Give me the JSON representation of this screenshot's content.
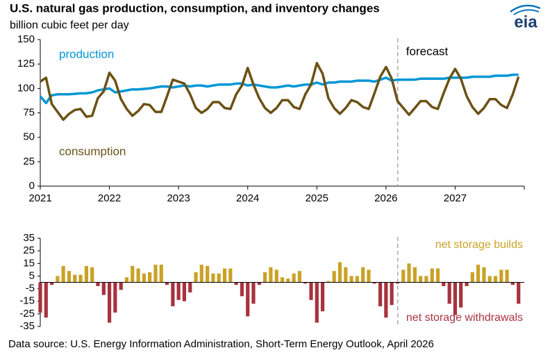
{
  "title": "U.S. natural gas production, consumption, and inventory changes",
  "subtitle": "billion cubic feet per day",
  "logo": "eia",
  "source": "Data source: U.S. Energy Information Administration, Short-Term Energy Outlook, April 2026",
  "chart_data": [
    {
      "type": "line",
      "x": [
        2021,
        2021.083,
        2021.167,
        2021.25,
        2021.333,
        2021.417,
        2021.5,
        2021.583,
        2021.667,
        2021.75,
        2021.833,
        2021.917,
        2022,
        2022.083,
        2022.167,
        2022.25,
        2022.333,
        2022.417,
        2022.5,
        2022.583,
        2022.667,
        2022.75,
        2022.833,
        2022.917,
        2023,
        2023.083,
        2023.167,
        2023.25,
        2023.333,
        2023.417,
        2023.5,
        2023.583,
        2023.667,
        2023.75,
        2023.833,
        2023.917,
        2024,
        2024.083,
        2024.167,
        2024.25,
        2024.333,
        2024.417,
        2024.5,
        2024.583,
        2024.667,
        2024.75,
        2024.833,
        2024.917,
        2025,
        2025.083,
        2025.167,
        2025.25,
        2025.333,
        2025.417,
        2025.5,
        2025.583,
        2025.667,
        2025.75,
        2025.833,
        2025.917,
        2026,
        2026.083,
        2026.167,
        2026.25,
        2026.333,
        2026.417,
        2026.5,
        2026.583,
        2026.667,
        2026.75,
        2026.833,
        2026.917,
        2027,
        2027.083,
        2027.167,
        2027.25,
        2027.333,
        2027.417,
        2027.5,
        2027.583,
        2027.667,
        2027.75,
        2027.833,
        2027.917
      ],
      "series": [
        {
          "name": "production",
          "color": "#0096d6",
          "values": [
            92,
            85,
            93,
            94,
            94,
            94,
            94.5,
            95,
            95,
            96,
            98,
            99,
            100,
            96,
            97,
            98,
            99,
            99,
            99.5,
            100,
            101,
            102,
            102,
            101,
            102,
            103,
            102,
            103,
            103,
            102,
            103,
            104,
            104,
            104,
            105,
            105,
            103,
            104,
            103,
            102,
            101,
            101,
            102,
            103,
            102,
            103,
            104,
            104,
            106,
            104,
            106,
            106,
            107,
            107,
            107,
            108,
            108,
            108,
            107,
            109,
            111,
            108,
            109,
            109,
            109,
            109,
            110,
            110,
            110,
            110,
            110,
            111,
            111,
            111,
            111,
            112,
            112,
            112,
            112,
            113,
            113,
            113,
            114,
            114
          ]
        },
        {
          "name": "consumption",
          "color": "#6b5114",
          "values": [
            107,
            111,
            84,
            76,
            68,
            74,
            78,
            79,
            71,
            72,
            90,
            97,
            116,
            108,
            89,
            79,
            72,
            77,
            84,
            83,
            76,
            76,
            92,
            109,
            107,
            105,
            94,
            80,
            75,
            79,
            86,
            86,
            80,
            79,
            94,
            103,
            121,
            104,
            90,
            80,
            75,
            80,
            88,
            88,
            81,
            79,
            94,
            104,
            126,
            115,
            90,
            80,
            74,
            80,
            88,
            86,
            81,
            79,
            95,
            112,
            122,
            110,
            87,
            80,
            73,
            80,
            87,
            87,
            81,
            79,
            95,
            110,
            120,
            110,
            92,
            81,
            74,
            80,
            89,
            89,
            83,
            80,
            94,
            112
          ]
        }
      ],
      "xlim": [
        2021,
        2028
      ],
      "xticks": [
        2021,
        2022,
        2023,
        2024,
        2025,
        2026,
        2027
      ],
      "ylim": [
        0,
        150
      ],
      "yticks": [
        0,
        25,
        50,
        75,
        100,
        125,
        150
      ],
      "annotations": [
        {
          "text": "forecast",
          "x": 2026.17
        }
      ]
    },
    {
      "type": "bar",
      "x": [
        2021,
        2021.083,
        2021.167,
        2021.25,
        2021.333,
        2021.417,
        2021.5,
        2021.583,
        2021.667,
        2021.75,
        2021.833,
        2021.917,
        2022,
        2022.083,
        2022.167,
        2022.25,
        2022.333,
        2022.417,
        2022.5,
        2022.583,
        2022.667,
        2022.75,
        2022.833,
        2022.917,
        2023,
        2023.083,
        2023.167,
        2023.25,
        2023.333,
        2023.417,
        2023.5,
        2023.583,
        2023.667,
        2023.75,
        2023.833,
        2023.917,
        2024,
        2024.083,
        2024.167,
        2024.25,
        2024.333,
        2024.417,
        2024.5,
        2024.583,
        2024.667,
        2024.75,
        2024.833,
        2024.917,
        2025,
        2025.083,
        2025.167,
        2025.25,
        2025.333,
        2025.417,
        2025.5,
        2025.583,
        2025.667,
        2025.75,
        2025.833,
        2025.917,
        2026,
        2026.083,
        2026.167,
        2026.25,
        2026.333,
        2026.417,
        2026.5,
        2026.583,
        2026.667,
        2026.75,
        2026.833,
        2026.917,
        2027,
        2027.083,
        2027.167,
        2027.25,
        2027.333,
        2027.417,
        2027.5,
        2027.583,
        2027.667,
        2027.75,
        2027.833,
        2027.917
      ],
      "series": [
        {
          "name": "net storage builds",
          "color": "#c9a227",
          "values": [
            null,
            null,
            null,
            5,
            13,
            9,
            6,
            6,
            13,
            12,
            null,
            null,
            null,
            null,
            null,
            4,
            13,
            11,
            7,
            8,
            14,
            14,
            null,
            null,
            null,
            null,
            null,
            8,
            14,
            13,
            7,
            7,
            11,
            11,
            null,
            null,
            null,
            null,
            null,
            8,
            12,
            10,
            4,
            3,
            7,
            9,
            null,
            null,
            null,
            null,
            1,
            9,
            16,
            12,
            5,
            5,
            12,
            10,
            null,
            null,
            null,
            null,
            null,
            10,
            15,
            12,
            5,
            5,
            11,
            11,
            null,
            null,
            null,
            null,
            null,
            8,
            14,
            12,
            5,
            5,
            10,
            10,
            null,
            null
          ]
        },
        {
          "name": "net storage withdrawals",
          "color": "#a8323f",
          "values": [
            -24,
            -28,
            -2,
            null,
            null,
            null,
            null,
            null,
            null,
            null,
            -3,
            -10,
            -32,
            -24,
            -6,
            null,
            null,
            null,
            null,
            null,
            null,
            null,
            -2,
            -19,
            -14,
            -15,
            -8,
            null,
            null,
            null,
            null,
            null,
            null,
            null,
            -2,
            -11,
            -27,
            -17,
            -2,
            null,
            null,
            null,
            null,
            null,
            null,
            null,
            -1,
            -14,
            -32,
            -23,
            null,
            null,
            null,
            null,
            null,
            null,
            null,
            null,
            -1,
            -19,
            -28,
            -18,
            -1,
            null,
            null,
            null,
            null,
            null,
            null,
            null,
            -3,
            -17,
            -26,
            -20,
            -3,
            null,
            null,
            null,
            null,
            null,
            null,
            null,
            -2,
            -17
          ]
        }
      ],
      "xlim": [
        2021,
        2028
      ],
      "ylim": [
        -35,
        35
      ],
      "yticks": [
        35,
        25,
        15,
        5,
        -5,
        -15,
        -25,
        -35
      ],
      "annotations": [
        {
          "x": 2026.17
        }
      ]
    }
  ]
}
